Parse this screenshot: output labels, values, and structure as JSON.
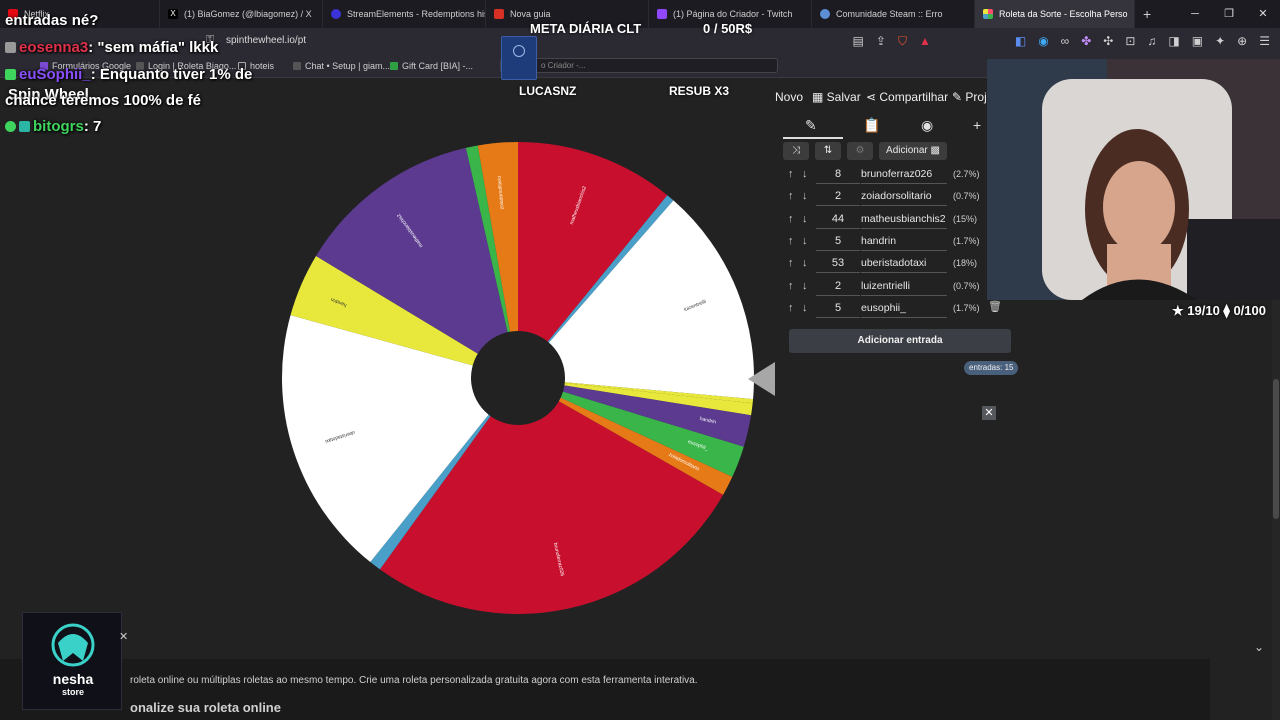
{
  "browser": {
    "tabs": [
      {
        "label": "Netflix",
        "color": "#e50914"
      },
      {
        "label": "(1) BiaGomez (@lbiagomez) / X",
        "color": "#000000"
      },
      {
        "label": "StreamElements - Redemptions histo",
        "color": "#3b33d6"
      },
      {
        "label": "Nova guia",
        "color": "#d93025"
      },
      {
        "label": "(1) Página do Criador - Twitch",
        "color": "#9146ff"
      },
      {
        "label": "Comunidade Steam :: Erro",
        "color": "#1b2838"
      },
      {
        "label": "Roleta da Sorte - Escolha Perso",
        "color": "#ff4d6d"
      }
    ],
    "url": "spinthewheel.io/pt",
    "search_placeholder": "o Criador -...",
    "bookmarks": [
      {
        "label": "Formulários Google",
        "color": "#7b4bd6"
      },
      {
        "label": "Login | Roleta Biago...",
        "color": "#555555"
      },
      {
        "label": "hoteis",
        "color": "#888888"
      },
      {
        "label": "Chat • Setup | giam...",
        "color": "#555555"
      },
      {
        "label": "Gift Card [BIA] -...",
        "color": "#2ea043"
      }
    ]
  },
  "app": {
    "menu": {
      "new": "Novo",
      "save": "Salvar",
      "share": "Compartilhar",
      "project": "Proj"
    },
    "add_button": "Adicionar",
    "entries": [
      {
        "weight": "8",
        "name": "brunoferraz026",
        "percent": "(2.7%)"
      },
      {
        "weight": "2",
        "name": "zoiadorsolitario",
        "percent": "(0.7%)"
      },
      {
        "weight": "44",
        "name": "matheusbianchis2",
        "percent": "(15%)"
      },
      {
        "weight": "5",
        "name": "handrin",
        "percent": "(1.7%)"
      },
      {
        "weight": "53",
        "name": "uberistadotaxi",
        "percent": "(18%)"
      },
      {
        "weight": "2",
        "name": "luizentrielli",
        "percent": "(0.7%)"
      },
      {
        "weight": "5",
        "name": "eusophii_",
        "percent": "(1.7%)"
      }
    ],
    "add_entry": "Adicionar entrada",
    "entries_count": "entradas: 15",
    "footer_text": "roleta online ou múltiplas roletas ao mesmo tempo. Crie uma roleta personalizada gratuita agora com esta ferramenta interativa.",
    "footer_heading": "onalize sua roleta online"
  },
  "wheel": {
    "segments": [
      {
        "value": 40,
        "color": "#c8102e",
        "label": "matheusbianchis2"
      },
      {
        "value": 2,
        "color": "#4a9fc9",
        "label": ""
      },
      {
        "value": 55,
        "color": "#ffffff",
        "label": "luizentrielli"
      },
      {
        "value": 1,
        "color": "#e8e83c",
        "label": ""
      },
      {
        "value": 3,
        "color": "#e8e83c",
        "label": "luizentrielli"
      },
      {
        "value": 8,
        "color": "#5b3a8f",
        "label": "handrin"
      },
      {
        "value": 8,
        "color": "#39b54a",
        "label": "eusophii_"
      },
      {
        "value": 5,
        "color": "#e67a17",
        "label": "zoiadorsolitario"
      },
      {
        "value": 98,
        "color": "#c8102e",
        "label": "brunoferraz026"
      },
      {
        "value": 3,
        "color": "#4a9fc9",
        "label": "eusophii_"
      },
      {
        "value": 68,
        "color": "#ffffff",
        "label": "uberistadotaxi"
      },
      {
        "value": 16,
        "color": "#e8e83c",
        "label": "handrin"
      },
      {
        "value": 47,
        "color": "#5b3a8f",
        "label": "matheusbianchis2"
      },
      {
        "value": 3,
        "color": "#39b54a",
        "label": "zoiadorsolitario"
      },
      {
        "value": 10,
        "color": "#e67a17",
        "label": "zoiadorsolitario"
      }
    ]
  },
  "overlay": {
    "chat": [
      {
        "user": "",
        "message": "entradas né?"
      },
      {
        "user": "eosenna3",
        "message": ": \"sem máfia\" lkkk"
      },
      {
        "user": "euSophii_",
        "message": ": Enquanto tiver 1% de"
      },
      {
        "user": "",
        "message": "chance teremos 100% de fé"
      },
      {
        "user": "bitogrs",
        "message": ": 7"
      }
    ],
    "spin_title": "Spin Wheel",
    "goal_title": "META DIÁRIA CLT",
    "goal_count": "0 / 50R$",
    "label_left": "LUCASNZ",
    "label_right": "RESUB X3",
    "stats": "★ 19/10  ⧫ 0/100",
    "sponsor_name": "nesha",
    "sponsor_sub": "store"
  }
}
